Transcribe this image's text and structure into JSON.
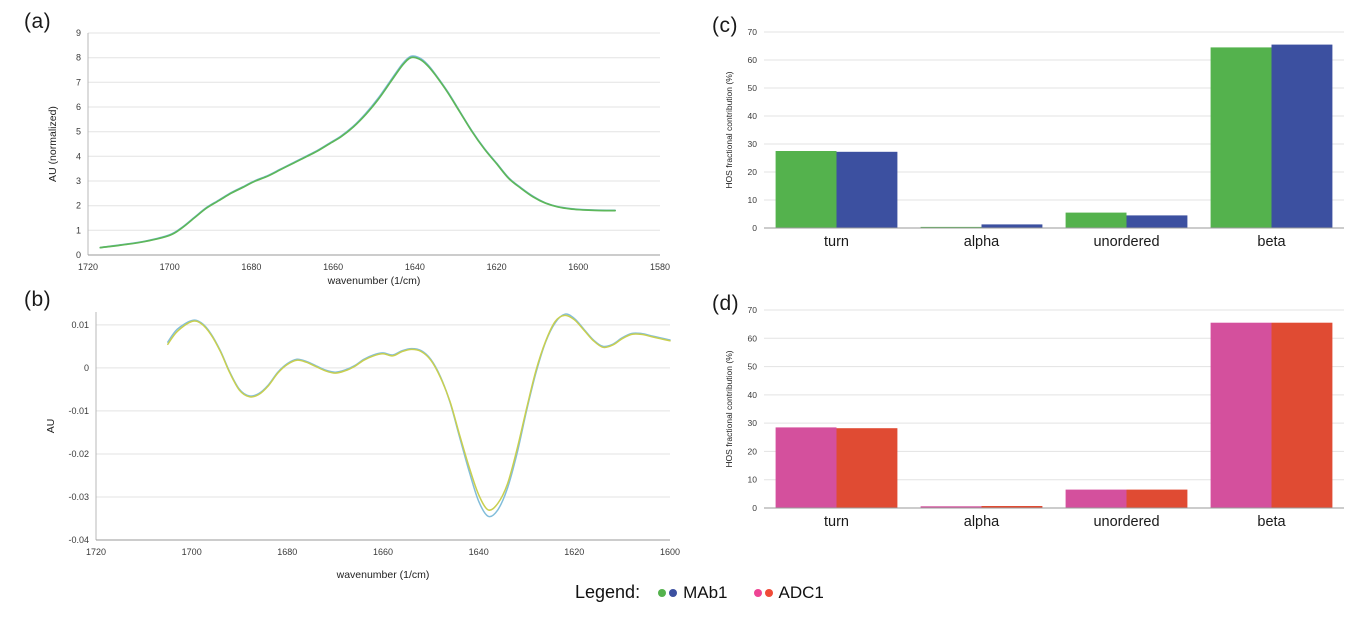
{
  "panels": {
    "a": {
      "label": "(a)"
    },
    "b": {
      "label": "(b)"
    },
    "c": {
      "label": "(c)"
    },
    "d": {
      "label": "(d)"
    }
  },
  "legend": {
    "title": "Legend:",
    "items": [
      {
        "label": "MAb1",
        "colors": [
          "#54b24d",
          "#3c50a0"
        ]
      },
      {
        "label": "ADC1",
        "colors": [
          "#ee4494",
          "#f04a38"
        ]
      }
    ]
  },
  "chart_data": [
    {
      "id": "a",
      "type": "line",
      "title": "",
      "xlabel": "wavenumber (1/cm)",
      "ylabel": "AU (normalized)",
      "xlim": [
        1720,
        1580
      ],
      "ylim": [
        0,
        9
      ],
      "xticks": [
        1720,
        1700,
        1680,
        1660,
        1640,
        1620,
        1600,
        1580
      ],
      "yticks": [
        0,
        1,
        2,
        3,
        4,
        5,
        6,
        7,
        8,
        9
      ],
      "x_descending": true,
      "series": [
        {
          "name": "series-blue",
          "color": "#7ab9d8",
          "x": [
            1717,
            1712,
            1706,
            1700,
            1697,
            1694,
            1691,
            1688,
            1685,
            1682,
            1679,
            1676,
            1673,
            1670,
            1667,
            1664,
            1661,
            1658,
            1655,
            1652,
            1649,
            1646,
            1643,
            1641,
            1639,
            1637,
            1635,
            1632,
            1629,
            1626,
            1623,
            1620,
            1617,
            1614,
            1611,
            1608,
            1605,
            1602,
            1599,
            1596,
            1593,
            1591
          ],
          "y": [
            0.3,
            0.41,
            0.56,
            0.82,
            1.12,
            1.52,
            1.92,
            2.22,
            2.52,
            2.77,
            3.02,
            3.22,
            3.47,
            3.72,
            3.97,
            4.22,
            4.52,
            4.83,
            5.23,
            5.74,
            6.35,
            7.05,
            7.75,
            8.05,
            8.0,
            7.74,
            7.33,
            6.63,
            5.82,
            5.02,
            4.32,
            3.72,
            3.12,
            2.72,
            2.37,
            2.11,
            1.96,
            1.88,
            1.84,
            1.82,
            1.81,
            1.81
          ]
        },
        {
          "name": "series-green",
          "color": "#5db75a",
          "x": [
            1717,
            1712,
            1706,
            1700,
            1697,
            1694,
            1691,
            1688,
            1685,
            1682,
            1679,
            1676,
            1673,
            1670,
            1667,
            1664,
            1661,
            1658,
            1655,
            1652,
            1649,
            1646,
            1643,
            1641,
            1639,
            1637,
            1635,
            1632,
            1629,
            1626,
            1623,
            1620,
            1617,
            1614,
            1611,
            1608,
            1605,
            1602,
            1599,
            1596,
            1593,
            1591
          ],
          "y": [
            0.3,
            0.4,
            0.55,
            0.8,
            1.1,
            1.5,
            1.9,
            2.2,
            2.5,
            2.75,
            3.0,
            3.2,
            3.45,
            3.7,
            3.95,
            4.2,
            4.5,
            4.8,
            5.2,
            5.7,
            6.3,
            7.0,
            7.7,
            8.0,
            7.95,
            7.7,
            7.3,
            6.6,
            5.8,
            5.0,
            4.3,
            3.7,
            3.1,
            2.7,
            2.35,
            2.1,
            1.95,
            1.87,
            1.83,
            1.81,
            1.8,
            1.8
          ]
        }
      ]
    },
    {
      "id": "b",
      "type": "line",
      "title": "",
      "xlabel": "wavenumber (1/cm)",
      "ylabel": "AU",
      "xlim": [
        1720,
        1600
      ],
      "ylim": [
        -0.04,
        0.013
      ],
      "xticks": [
        1720,
        1700,
        1680,
        1660,
        1640,
        1620,
        1600
      ],
      "yticks": [
        0.01,
        0,
        -0.01,
        -0.02,
        -0.03,
        -0.04
      ],
      "x_descending": true,
      "series": [
        {
          "name": "series-blue",
          "color": "#82bdda",
          "x": [
            1705,
            1703,
            1700,
            1698,
            1696,
            1694,
            1692,
            1690,
            1688,
            1686,
            1684,
            1682,
            1680,
            1678,
            1676,
            1674,
            1672,
            1670,
            1668,
            1666,
            1664,
            1662,
            1660,
            1658,
            1656,
            1654,
            1652,
            1650,
            1648,
            1646,
            1644,
            1642,
            1640,
            1638,
            1636,
            1634,
            1632,
            1630,
            1628,
            1626,
            1624,
            1622,
            1620,
            1618,
            1616,
            1614,
            1612,
            1610,
            1608,
            1606,
            1604,
            1602,
            1600
          ],
          "y": [
            0.006,
            0.009,
            0.011,
            0.0105,
            0.008,
            0.004,
            -0.001,
            -0.005,
            -0.0065,
            -0.006,
            -0.004,
            -0.001,
            0.001,
            0.002,
            0.0015,
            0.0005,
            -0.0005,
            -0.001,
            -0.0005,
            0.0005,
            0.002,
            0.003,
            0.0035,
            0.003,
            0.004,
            0.0045,
            0.004,
            0.002,
            -0.002,
            -0.008,
            -0.016,
            -0.024,
            -0.031,
            -0.0345,
            -0.033,
            -0.028,
            -0.02,
            -0.01,
            -0.001,
            0.006,
            0.0105,
            0.0125,
            0.0115,
            0.009,
            0.0065,
            0.005,
            0.0055,
            0.007,
            0.008,
            0.008,
            0.0075,
            0.007,
            0.0065
          ]
        },
        {
          "name": "series-yellow",
          "color": "#c9cf4f",
          "x": [
            1705,
            1703,
            1700,
            1698,
            1696,
            1694,
            1692,
            1690,
            1688,
            1686,
            1684,
            1682,
            1680,
            1678,
            1676,
            1674,
            1672,
            1670,
            1668,
            1666,
            1664,
            1662,
            1660,
            1658,
            1656,
            1654,
            1652,
            1650,
            1648,
            1646,
            1644,
            1642,
            1640,
            1638,
            1636,
            1634,
            1632,
            1630,
            1628,
            1626,
            1624,
            1622,
            1620,
            1618,
            1616,
            1614,
            1612,
            1610,
            1608,
            1606,
            1604,
            1602,
            1600
          ],
          "y": [
            0.0055,
            0.0085,
            0.0108,
            0.0103,
            0.0078,
            0.0038,
            -0.0012,
            -0.0052,
            -0.0067,
            -0.0062,
            -0.0042,
            -0.0012,
            0.0008,
            0.0018,
            0.0013,
            0.0003,
            -0.0007,
            -0.0012,
            -0.0007,
            0.0003,
            0.0018,
            0.0028,
            0.0033,
            0.0028,
            0.0038,
            0.0043,
            0.0038,
            0.0018,
            -0.0022,
            -0.0078,
            -0.0155,
            -0.023,
            -0.0295,
            -0.033,
            -0.0315,
            -0.027,
            -0.019,
            -0.0095,
            -0.0005,
            0.0062,
            0.0108,
            0.0122,
            0.0112,
            0.0088,
            0.0063,
            0.0048,
            0.0053,
            0.0068,
            0.0078,
            0.0078,
            0.0073,
            0.0068,
            0.0063
          ]
        }
      ]
    },
    {
      "id": "c",
      "type": "bar",
      "title": "",
      "xlabel": "",
      "ylabel": "HOS fractional contribution (%)",
      "ylim": [
        0,
        70
      ],
      "yticks": [
        0,
        10,
        20,
        30,
        40,
        50,
        60,
        70
      ],
      "categories": [
        "turn",
        "alpha",
        "unordered",
        "beta"
      ],
      "series": [
        {
          "name": "MAb1-green",
          "color": "#54b24d",
          "values": [
            27.5,
            0.4,
            5.5,
            64.5
          ]
        },
        {
          "name": "MAb1-blue",
          "color": "#3c50a0",
          "values": [
            27.2,
            1.3,
            4.5,
            65.5
          ]
        }
      ]
    },
    {
      "id": "d",
      "type": "bar",
      "title": "",
      "xlabel": "",
      "ylabel": "HOS fractional contribution (%)",
      "ylim": [
        0,
        70
      ],
      "yticks": [
        0,
        10,
        20,
        30,
        40,
        50,
        60,
        70
      ],
      "categories": [
        "turn",
        "alpha",
        "unordered",
        "beta"
      ],
      "series": [
        {
          "name": "ADC1-pink",
          "color": "#d4509d",
          "values": [
            28.5,
            0.6,
            6.5,
            65.5
          ]
        },
        {
          "name": "ADC1-red",
          "color": "#e04b33",
          "values": [
            28.2,
            0.7,
            6.5,
            65.5
          ]
        }
      ]
    }
  ]
}
